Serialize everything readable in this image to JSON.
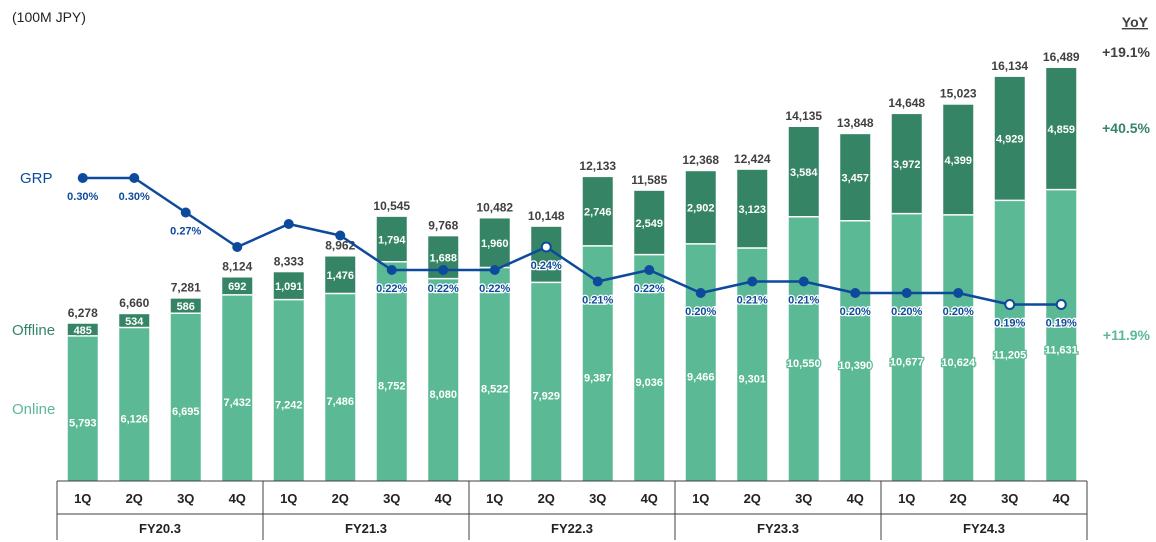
{
  "unit_label": "(100M JPY)",
  "yoy": {
    "title": "YoY",
    "total": "+19.1%",
    "offline": "+40.5%",
    "online": "+11.9%"
  },
  "legend": {
    "grp": "GRP",
    "offline": "Offline",
    "online": "Online"
  },
  "colors": {
    "online": "#5bb995",
    "offline": "#368466",
    "line": "#0e4a9c",
    "total_text": "#404040",
    "axis": "#404040"
  },
  "chart_data": {
    "type": "bar",
    "stacked": true,
    "categories": [
      "1Q",
      "2Q",
      "3Q",
      "4Q",
      "1Q",
      "2Q",
      "3Q",
      "4Q",
      "1Q",
      "2Q",
      "3Q",
      "4Q",
      "1Q",
      "2Q",
      "3Q",
      "4Q",
      "1Q",
      "2Q",
      "3Q",
      "4Q"
    ],
    "groups": [
      {
        "label": "FY20.3",
        "count": 4
      },
      {
        "label": "FY21.3",
        "count": 4
      },
      {
        "label": "FY22.3",
        "count": 4
      },
      {
        "label": "FY23.3",
        "count": 4
      },
      {
        "label": "FY24.3",
        "count": 4
      }
    ],
    "series": [
      {
        "name": "Online",
        "values": [
          5793,
          6126,
          6695,
          7432,
          7242,
          7486,
          8752,
          8080,
          8522,
          7929,
          9387,
          9036,
          9466,
          9301,
          10550,
          10390,
          10677,
          10624,
          11205,
          11631
        ]
      },
      {
        "name": "Offline",
        "values": [
          485,
          534,
          586,
          692,
          1091,
          1476,
          1794,
          1688,
          1960,
          2219,
          2746,
          2549,
          2902,
          3123,
          3584,
          3457,
          3972,
          4399,
          4929,
          4859
        ]
      }
    ],
    "totals": [
      6278,
      6660,
      7281,
      8124,
      8333,
      8962,
      10545,
      9768,
      10482,
      10148,
      12133,
      11585,
      12368,
      12424,
      14135,
      13848,
      14648,
      15023,
      16134,
      16489
    ],
    "label_texts": {
      "online": [
        "5,793",
        "6,126",
        "6,695",
        "7,432",
        "7,242",
        "7,486",
        "8,752",
        "8,080",
        "8,522",
        "7,929",
        "9,387",
        "9,036",
        "9,466",
        "9,301",
        "10,550",
        "10,390",
        "10,677",
        "10,624",
        "11,205",
        "11,631"
      ],
      "offline": [
        "485",
        "534",
        "586",
        "692",
        "1,091",
        "1,476",
        "1,794",
        "1,688",
        "1,960",
        "",
        "2,746",
        "2,549",
        "2,902",
        "3,123",
        "3,584",
        "3,457",
        "3,972",
        "4,399",
        "4,929",
        "4,859"
      ],
      "totals": [
        "6,278",
        "6,660",
        "7,281",
        "8,124",
        "8,333",
        "8,962",
        "10,545",
        "9,768",
        "10,482",
        "10,148",
        "12,133",
        "11,585",
        "12,368",
        "12,424",
        "14,135",
        "13,848",
        "14,648",
        "15,023",
        "16,134",
        "16,489"
      ],
      "grp": [
        "0.30%",
        "0.30%",
        "0.27%",
        "",
        "",
        "",
        "0.22%",
        "0.22%",
        "0.22%",
        "0.24%",
        "0.21%",
        "0.22%",
        "0.20%",
        "0.21%",
        "0.21%",
        "0.20%",
        "0.20%",
        "0.20%",
        "0.19%",
        "0.19%"
      ]
    },
    "line": {
      "name": "GRP",
      "unit": "%",
      "values": [
        0.3,
        0.3,
        0.27,
        0.24,
        0.26,
        0.25,
        0.22,
        0.22,
        0.22,
        0.24,
        0.21,
        0.22,
        0.2,
        0.21,
        0.21,
        0.2,
        0.2,
        0.2,
        0.19,
        0.19
      ]
    },
    "ylim": [
      0,
      17000
    ]
  }
}
